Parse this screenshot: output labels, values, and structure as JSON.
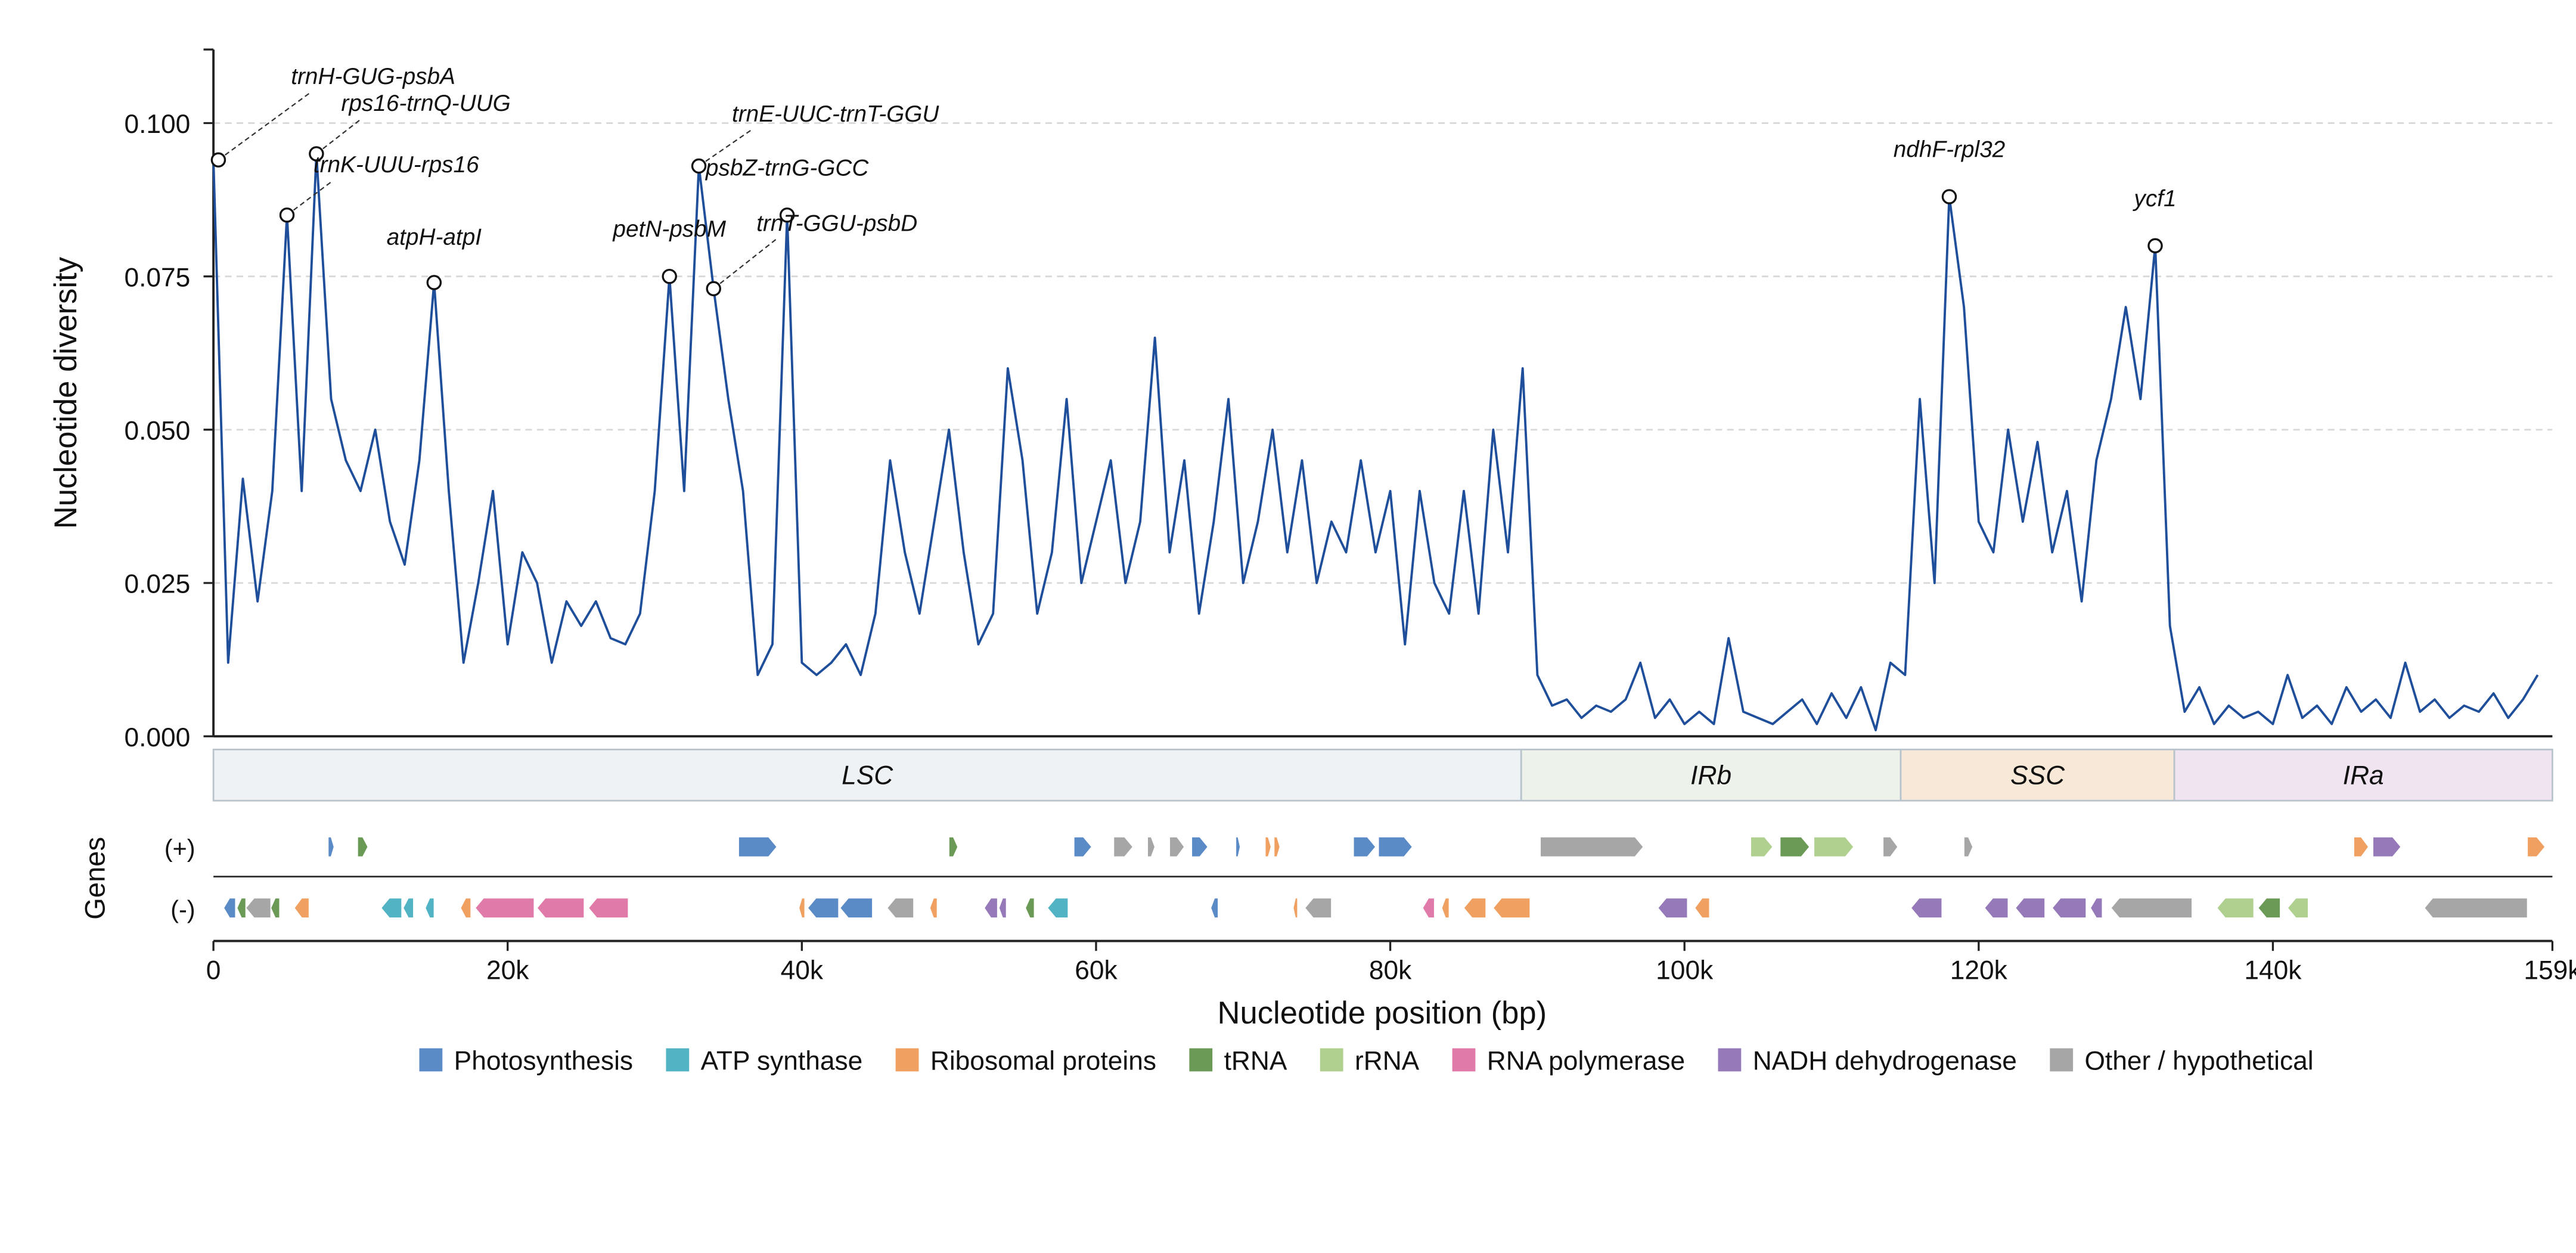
{
  "chart_data": {
    "type": "line",
    "ylabel": "Nucleotide diversity",
    "xlabel": "Nucleotide position (bp)",
    "xlim": [
      0,
      159000
    ],
    "ylim": [
      0,
      0.112
    ],
    "xticks": [
      0,
      {
        "value": 20000,
        "label": "20k"
      },
      {
        "value": 40000,
        "label": "40k"
      },
      {
        "value": 60000,
        "label": "60k"
      },
      {
        "value": 80000,
        "label": "80k"
      },
      {
        "value": 100000,
        "label": "100k"
      },
      {
        "value": 120000,
        "label": "120k"
      },
      {
        "value": 140000,
        "label": "140k"
      },
      {
        "value": 159000,
        "label": "159k"
      }
    ],
    "yticks": [
      {
        "value": 0,
        "label": "0.000"
      },
      {
        "value": 0.025,
        "label": "0.025"
      },
      {
        "value": 0.05,
        "label": "0.050"
      },
      {
        "value": 0.075,
        "label": "0.075"
      },
      {
        "value": 0.1,
        "label": "0.100"
      }
    ],
    "grid": true,
    "x": [
      0,
      1000,
      2000,
      3000,
      4000,
      5000,
      6000,
      7000,
      8000,
      9000,
      10000,
      11000,
      12000,
      13000,
      14000,
      15000,
      16000,
      17000,
      18000,
      19000,
      20000,
      21000,
      22000,
      23000,
      24000,
      25000,
      26000,
      27000,
      28000,
      29000,
      30000,
      31000,
      32000,
      33000,
      34000,
      35000,
      36000,
      37000,
      38000,
      39000,
      40000,
      41000,
      42000,
      43000,
      44000,
      45000,
      46000,
      47000,
      48000,
      49000,
      50000,
      51000,
      52000,
      53000,
      54000,
      55000,
      56000,
      57000,
      58000,
      59000,
      60000,
      61000,
      62000,
      63000,
      64000,
      65000,
      66000,
      67000,
      68000,
      69000,
      70000,
      71000,
      72000,
      73000,
      74000,
      75000,
      76000,
      77000,
      78000,
      79000,
      80000,
      81000,
      82000,
      83000,
      84000,
      85000,
      86000,
      87000,
      88000,
      89000,
      90000,
      91000,
      92000,
      93000,
      94000,
      95000,
      96000,
      97000,
      98000,
      99000,
      100000,
      101000,
      102000,
      103000,
      104000,
      105000,
      106000,
      107000,
      108000,
      109000,
      110000,
      111000,
      112000,
      113000,
      114000,
      115000,
      116000,
      117000,
      118000,
      119000,
      120000,
      121000,
      122000,
      123000,
      124000,
      125000,
      126000,
      127000,
      128000,
      129000,
      130000,
      131000,
      132000,
      133000,
      134000,
      135000,
      136000,
      137000,
      138000,
      139000,
      140000,
      141000,
      142000,
      143000,
      144000,
      145000,
      146000,
      147000,
      148000,
      149000,
      150000,
      151000,
      152000,
      153000,
      154000,
      155000,
      156000,
      157000,
      158000
    ],
    "series": [
      {
        "color": "#1f4e9a",
        "values": [
          0.094,
          0.012,
          0.042,
          0.022,
          0.04,
          0.085,
          0.04,
          0.095,
          0.055,
          0.045,
          0.04,
          0.05,
          0.035,
          0.028,
          0.045,
          0.074,
          0.04,
          0.012,
          0.025,
          0.04,
          0.015,
          0.03,
          0.025,
          0.012,
          0.022,
          0.018,
          0.022,
          0.016,
          0.015,
          0.02,
          0.04,
          0.075,
          0.04,
          0.093,
          0.073,
          0.055,
          0.04,
          0.01,
          0.015,
          0.085,
          0.012,
          0.01,
          0.012,
          0.015,
          0.01,
          0.02,
          0.045,
          0.03,
          0.02,
          0.035,
          0.05,
          0.03,
          0.015,
          0.02,
          0.06,
          0.045,
          0.02,
          0.03,
          0.055,
          0.025,
          0.035,
          0.045,
          0.025,
          0.035,
          0.065,
          0.03,
          0.045,
          0.02,
          0.035,
          0.055,
          0.025,
          0.035,
          0.05,
          0.03,
          0.045,
          0.025,
          0.035,
          0.03,
          0.045,
          0.03,
          0.04,
          0.015,
          0.04,
          0.025,
          0.02,
          0.04,
          0.02,
          0.05,
          0.03,
          0.06,
          0.01,
          0.005,
          0.006,
          0.003,
          0.005,
          0.004,
          0.006,
          0.012,
          0.003,
          0.006,
          0.002,
          0.004,
          0.002,
          0.016,
          0.004,
          0.003,
          0.002,
          0.004,
          0.006,
          0.002,
          0.007,
          0.003,
          0.008,
          0.001,
          0.012,
          0.01,
          0.055,
          0.025,
          0.088,
          0.07,
          0.035,
          0.03,
          0.05,
          0.035,
          0.048,
          0.03,
          0.04,
          0.022,
          0.045,
          0.055,
          0.07,
          0.055,
          0.08,
          0.018,
          0.004,
          0.008,
          0.002,
          0.005,
          0.003,
          0.004,
          0.002,
          0.01,
          0.003,
          0.005,
          0.002,
          0.008,
          0.004,
          0.006,
          0.003,
          0.012,
          0.004,
          0.006,
          0.003,
          0.005,
          0.004,
          0.007,
          0.003,
          0.006,
          0.01
        ]
      }
    ],
    "annotations": [
      {
        "label": "trnH-GUG-psbA",
        "x": 0,
        "y": 0.094
      },
      {
        "label": "rps16-trnQ-UUG",
        "x": 7000,
        "y": 0.095
      },
      {
        "label": "trnK-UUU-rps16",
        "x": 5000,
        "y": 0.085
      },
      {
        "label": "atpH-atpI",
        "x": 15000,
        "y": 0.074
      },
      {
        "label": "petN-psbM",
        "x": 31000,
        "y": 0.075
      },
      {
        "label": "trnE-UUC-trnT-GGU",
        "x": 33000,
        "y": 0.093
      },
      {
        "label": "psbZ-trnG-GCC",
        "x": 39000,
        "y": 0.085
      },
      {
        "label": "trnT-GGU-psbD",
        "x": 34000,
        "y": 0.073
      },
      {
        "label": "ndhF-rpl32",
        "x": 118000,
        "y": 0.088
      },
      {
        "label": "ycf1",
        "x": 132000,
        "y": 0.08
      }
    ],
    "regions": [
      {
        "label": "LSC",
        "start": 0,
        "end": 88900,
        "color": "#eef2f5"
      },
      {
        "label": "IRb",
        "start": 88900,
        "end": 114700,
        "color": "#edf2ea"
      },
      {
        "label": "SSC",
        "start": 114700,
        "end": 133300,
        "color": "#f8e8d8"
      },
      {
        "label": "IRa",
        "start": 133300,
        "end": 159000,
        "color": "#efe4f0"
      }
    ],
    "genes_label": "Genes",
    "strand_labels": [
      "(+)",
      "(-)"
    ],
    "gene_categories": [
      {
        "name": "Photosynthesis",
        "color": "#5b8bc6",
        "plus": [
          [
            7800,
            8200
          ],
          [
            35700,
            38300
          ],
          [
            58500,
            59700
          ],
          [
            66500,
            67600
          ],
          [
            69500,
            69800
          ],
          [
            77500,
            79000
          ],
          [
            79200,
            81500
          ]
        ],
        "minus": [
          [
            700,
            1500
          ],
          [
            40400,
            42500
          ],
          [
            42600,
            44800
          ],
          [
            67800,
            68300
          ]
        ]
      },
      {
        "name": "ATP synthase",
        "color": "#52b3c4",
        "plus": [],
        "minus": [
          [
            11400,
            12800
          ],
          [
            12900,
            13600
          ],
          [
            14400,
            15000
          ],
          [
            56700,
            58100
          ]
        ]
      },
      {
        "name": "Ribosomal proteins",
        "color": "#f0a060",
        "plus": [
          [
            71500,
            71900
          ],
          [
            72100,
            72500
          ],
          [
            145500,
            146500
          ],
          [
            157300,
            158500
          ]
        ],
        "minus": [
          [
            5500,
            6500
          ],
          [
            16800,
            17500
          ],
          [
            39800,
            40200
          ],
          [
            48700,
            49200
          ],
          [
            73400,
            73700
          ],
          [
            83500,
            84000
          ],
          [
            85000,
            86500
          ],
          [
            87000,
            89500
          ],
          [
            100700,
            101700
          ]
        ]
      },
      {
        "name": "tRNA",
        "color": "#6a9a55",
        "plus": [
          [
            9800,
            10500
          ],
          [
            50000,
            50600
          ],
          [
            106500,
            108500
          ]
        ],
        "minus": [
          [
            1600,
            2200
          ],
          [
            3900,
            4500
          ],
          [
            55200,
            55800
          ],
          [
            139000,
            140500
          ]
        ]
      },
      {
        "name": "rRNA",
        "color": "#b0d08f",
        "plus": [
          [
            104500,
            106000
          ],
          [
            108800,
            111500
          ]
        ],
        "minus": [
          [
            136200,
            138700
          ],
          [
            141000,
            142400
          ]
        ]
      },
      {
        "name": "RNA polymerase",
        "color": "#e07aa8",
        "plus": [],
        "minus": [
          [
            17800,
            21800
          ],
          [
            22000,
            25200
          ],
          [
            25500,
            28200
          ],
          [
            82200,
            83000
          ]
        ]
      },
      {
        "name": "NADH dehydrogenase",
        "color": "#9579b8",
        "plus": [
          [
            146800,
            148700
          ]
        ],
        "minus": [
          [
            52400,
            53300
          ],
          [
            53400,
            53900
          ],
          [
            98200,
            100200
          ],
          [
            115400,
            117500
          ],
          [
            120400,
            122000
          ],
          [
            122500,
            124500
          ],
          [
            125000,
            127300
          ],
          [
            127600,
            128400
          ]
        ]
      },
      {
        "name": "Other / hypothetical",
        "color": "#a6a6a6",
        "plus": [
          [
            61200,
            62500
          ],
          [
            63500,
            64000
          ],
          [
            65000,
            66000
          ],
          [
            90200,
            97200
          ],
          [
            113500,
            114500
          ],
          [
            119000,
            119600
          ]
        ],
        "minus": [
          [
            2200,
            3900
          ],
          [
            45800,
            47600
          ],
          [
            74200,
            76000
          ],
          [
            129000,
            134500
          ],
          [
            150300,
            157300
          ]
        ]
      }
    ]
  }
}
